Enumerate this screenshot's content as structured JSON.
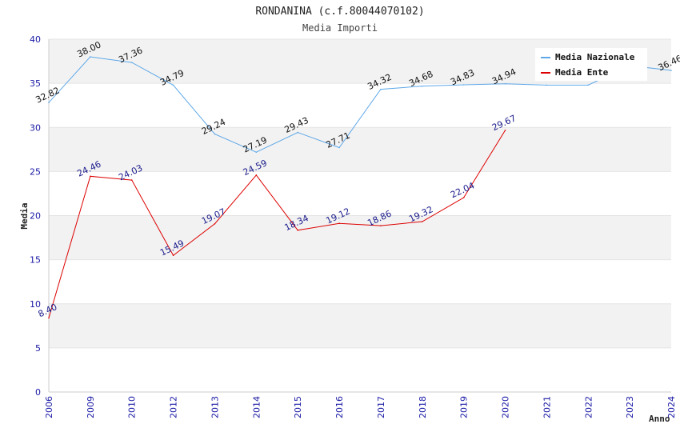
{
  "chart_data": {
    "type": "line",
    "title": "RONDANINA (c.f.80044070102)",
    "subtitle": "Media Importi",
    "xlabel": "Anno",
    "ylabel": "Media",
    "ylim": [
      0,
      40
    ],
    "yticks": [
      0,
      5,
      10,
      15,
      20,
      25,
      30,
      35,
      40
    ],
    "categories": [
      "2006",
      "2009",
      "2010",
      "2012",
      "2013",
      "2014",
      "2015",
      "2016",
      "2017",
      "2018",
      "2019",
      "2020",
      "2021",
      "2022",
      "2023",
      "2024"
    ],
    "grid": "horizontal bands",
    "legend_position": "top-right",
    "series": [
      {
        "name": "Media Nazionale",
        "color": "#5fa8e8",
        "values": [
          32.82,
          38.0,
          37.36,
          34.79,
          29.24,
          27.19,
          29.43,
          27.71,
          34.32,
          34.68,
          34.83,
          34.94,
          34.8,
          34.8,
          37.0,
          36.46
        ],
        "data_labels": [
          "32.82",
          "38.00",
          "37.36",
          "34.79",
          "29.24",
          "27.19",
          "29.43",
          "27.71",
          "34.32",
          "34.68",
          "34.83",
          "34.94",
          "",
          "",
          "",
          "36.46"
        ]
      },
      {
        "name": "Media Ente",
        "color": "#dd0000",
        "values": [
          8.4,
          24.46,
          24.03,
          15.49,
          19.07,
          24.59,
          18.34,
          19.12,
          18.86,
          19.32,
          22.04,
          29.67,
          null,
          null,
          null,
          null
        ],
        "data_labels": [
          "8.40",
          "24.46",
          "24.03",
          "15.49",
          "19.07",
          "24.59",
          "18.34",
          "19.12",
          "18.86",
          "19.32",
          "22.04",
          "29.67",
          "",
          "",
          "",
          ""
        ]
      }
    ]
  }
}
